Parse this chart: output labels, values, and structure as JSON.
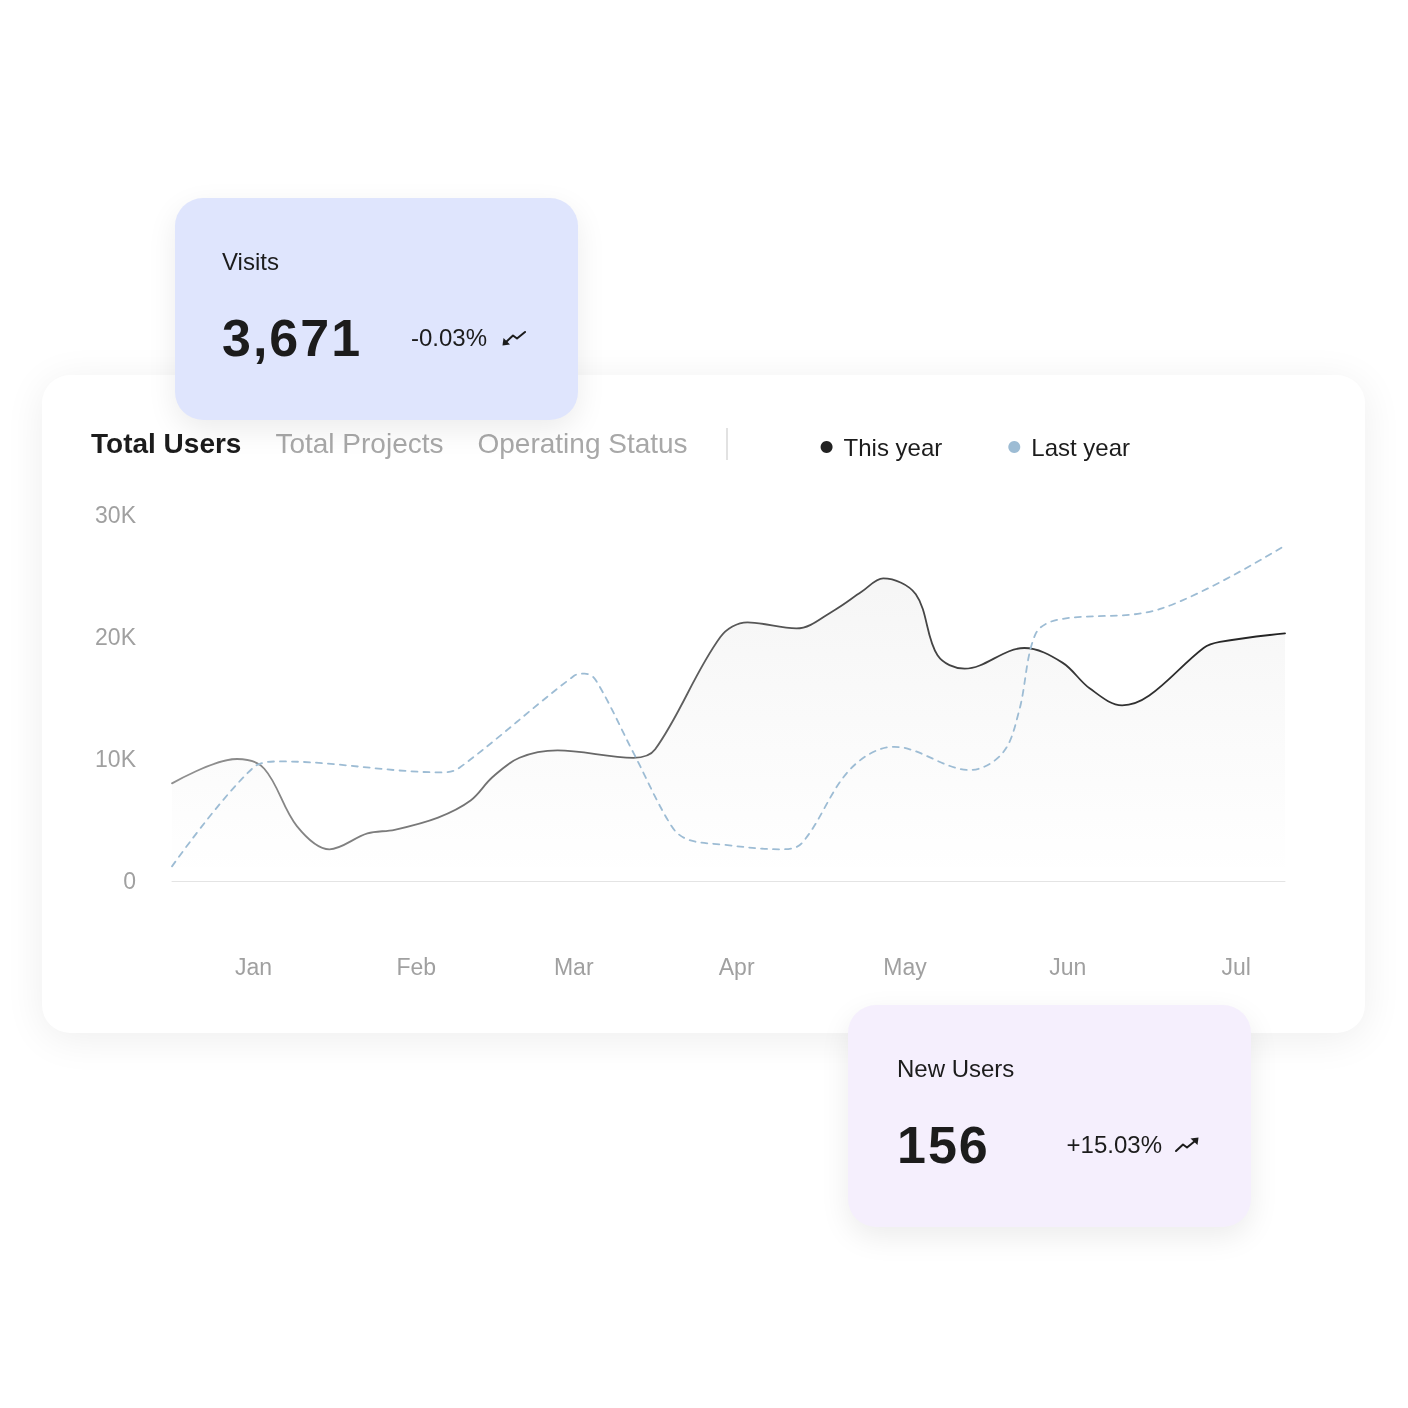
{
  "chart_data": [
    {
      "type": "other",
      "title": "Visits",
      "annotations": [
        "3,671",
        "-0.03%"
      ]
    },
    {
      "type": "line",
      "title": "Total Users",
      "annotations": [
        "Total Projects",
        "Operating Status"
      ],
      "xlim": [
        "--01-01",
        "--07-25"
      ],
      "xticks": [
        {
          "value": "--01-16",
          "label": "Jan"
        },
        {
          "value": "--02-15",
          "label": "Feb"
        },
        {
          "value": "--03-16",
          "label": "Mar"
        },
        {
          "value": "--04-15",
          "label": "Apr"
        },
        {
          "value": "--05-16",
          "label": "May"
        },
        {
          "value": "--06-15",
          "label": "Jun"
        },
        {
          "value": "--07-16",
          "label": "Jul"
        }
      ],
      "ylim": [
        0,
        30000
      ],
      "yticks": [
        0,
        {
          "value": 10000,
          "label": "10K"
        },
        {
          "value": 20000,
          "label": "20K"
        },
        {
          "value": 30000,
          "label": "30K"
        }
      ],
      "legend": "top right",
      "marker": "none",
      "series": [
        {
          "name": "This year",
          "type": "area",
          "color": "#222222",
          "line_style": "solid",
          "x": [
            "--01-01",
            "--01-13",
            "--01-18",
            "--01-24",
            "--01-30",
            "--02-06",
            "--02-11",
            "--02-19",
            "--02-25",
            "--03-01",
            "--03-06",
            "--03-13",
            "--03-27",
            "--03-31",
            "--04-12",
            "--04-17",
            "--04-26",
            "--05-03",
            "--05-08",
            "--05-12",
            "--05-18",
            "--05-22",
            "--05-27",
            "--06-07",
            "--06-14",
            "--06-19",
            "--06-25",
            "--06-30",
            "--07-10",
            "--07-13",
            "--07-25"
          ],
          "values": [
            8000,
            10000,
            9200,
            4500,
            2600,
            3900,
            4200,
            5200,
            6600,
            8500,
            10100,
            10700,
            10100,
            10800,
            20000,
            21200,
            20700,
            22200,
            23700,
            24800,
            23500,
            18500,
            17400,
            19100,
            17900,
            15800,
            14400,
            15200,
            19100,
            19600,
            20300
          ]
        },
        {
          "name": "Last year",
          "type": "line",
          "color": "#9dbcd4",
          "line_style": "dashed",
          "x": [
            "--01-01",
            "--01-16",
            "--01-21",
            "--02-20",
            "--02-23",
            "--03-16",
            "--03-18",
            "--03-20",
            "--03-27",
            "--04-03",
            "--04-06",
            "--04-12",
            "--04-23",
            "--04-27",
            "--05-06",
            "--05-14",
            "--05-28",
            "--06-03",
            "--06-06",
            "--06-09",
            "--06-13",
            "--07-02",
            "--07-25"
          ],
          "values": [
            1200,
            9300,
            9800,
            8900,
            9300,
            16800,
            17000,
            16500,
            10500,
            4500,
            3400,
            3000,
            2600,
            3100,
            9200,
            11000,
            9100,
            10500,
            13900,
            20200,
            21400,
            22300,
            27500
          ]
        }
      ]
    },
    {
      "type": "other",
      "title": "New Users",
      "annotations": [
        "156",
        "+15.03%"
      ]
    }
  ]
}
